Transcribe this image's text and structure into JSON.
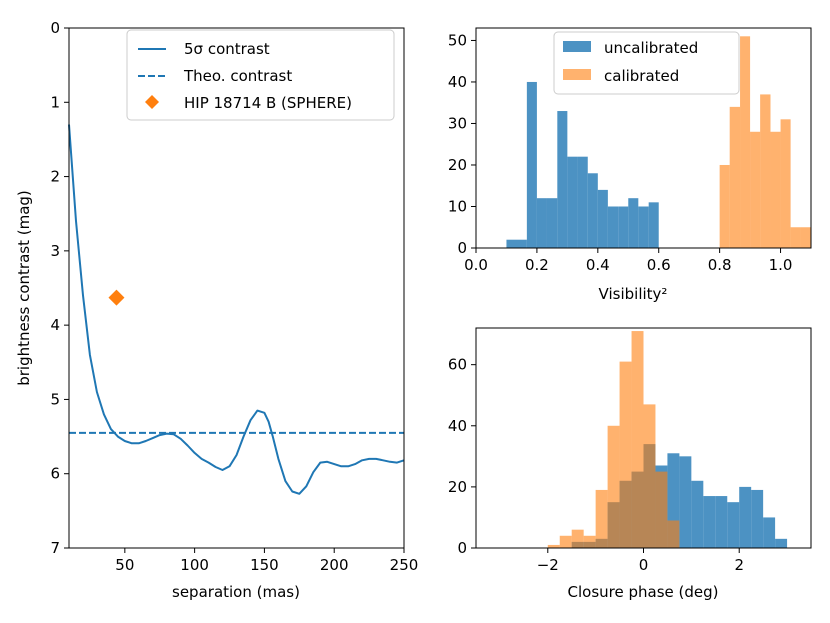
{
  "chart_data": [
    {
      "id": "contrast",
      "type": "line",
      "xlabel": "separation (mas)",
      "ylabel": "brightness contrast (mag)",
      "xlim": [
        10,
        250
      ],
      "ylim": [
        7,
        0
      ],
      "xticks": [
        50,
        100,
        150,
        200,
        250
      ],
      "yticks": [
        0,
        1,
        2,
        3,
        4,
        5,
        6,
        7
      ],
      "colors": {
        "line": "#1f77b4",
        "marker": "#ff7f0e"
      },
      "legend_position": "top-right",
      "legend": [
        "5σ contrast",
        "Theo. contrast",
        "HIP 18714 B (SPHERE)"
      ],
      "series": [
        {
          "name": "5σ contrast",
          "style": "solid",
          "x": [
            10,
            15,
            20,
            25,
            30,
            35,
            40,
            45,
            50,
            55,
            60,
            65,
            70,
            75,
            80,
            85,
            90,
            95,
            100,
            105,
            110,
            115,
            120,
            125,
            130,
            135,
            140,
            145,
            150,
            153,
            156,
            160,
            165,
            170,
            175,
            180,
            185,
            190,
            195,
            200,
            205,
            210,
            215,
            220,
            225,
            230,
            235,
            240,
            245,
            250
          ],
          "y": [
            1.3,
            2.6,
            3.6,
            4.4,
            4.9,
            5.2,
            5.4,
            5.5,
            5.56,
            5.59,
            5.59,
            5.56,
            5.52,
            5.48,
            5.46,
            5.47,
            5.53,
            5.62,
            5.72,
            5.8,
            5.85,
            5.91,
            5.95,
            5.9,
            5.75,
            5.5,
            5.28,
            5.15,
            5.18,
            5.3,
            5.5,
            5.8,
            6.1,
            6.24,
            6.27,
            6.17,
            5.98,
            5.85,
            5.84,
            5.87,
            5.9,
            5.9,
            5.87,
            5.82,
            5.8,
            5.8,
            5.82,
            5.84,
            5.85,
            5.82
          ]
        },
        {
          "name": "Theo. contrast",
          "style": "dashed",
          "y_constant": 5.45
        },
        {
          "name": "HIP 18714 B (SPHERE)",
          "style": "marker-diamond",
          "x": [
            44
          ],
          "y": [
            3.63
          ]
        }
      ]
    },
    {
      "id": "visibility",
      "type": "histogram",
      "xlabel": "Visibility²",
      "ylabel": "",
      "xlim": [
        0,
        1.1
      ],
      "ylim": [
        0,
        53
      ],
      "xticks": [
        "0.0",
        "0.2",
        "0.4",
        "0.6",
        "0.8",
        "1.0"
      ],
      "yticks": [
        0,
        10,
        20,
        30,
        40,
        50
      ],
      "legend_position": "top-center",
      "series": [
        {
          "name": "uncalibrated",
          "color": "#1f77b4",
          "bins": [
            0.1,
            0.133,
            0.167,
            0.2,
            0.233,
            0.267,
            0.3,
            0.333,
            0.367,
            0.4,
            0.433,
            0.467,
            0.5,
            0.533,
            0.567,
            0.6
          ],
          "counts": [
            2,
            2,
            40,
            12,
            12,
            33,
            22,
            22,
            18,
            14,
            10,
            10,
            12,
            10,
            11
          ]
        },
        {
          "name": "calibrated",
          "color": "#ff7f0e",
          "bins": [
            0.8,
            0.833,
            0.867,
            0.9,
            0.933,
            0.967,
            1.0,
            1.033,
            1.067,
            1.1
          ],
          "counts": [
            20,
            34,
            51,
            28,
            37,
            28,
            31,
            5,
            5
          ]
        }
      ]
    },
    {
      "id": "closure",
      "type": "histogram",
      "xlabel": "Closure phase (deg)",
      "ylabel": "",
      "xlim": [
        -3.5,
        3.5
      ],
      "ylim": [
        0,
        72
      ],
      "xticks": [
        "−2",
        "0",
        "2"
      ],
      "yticks": [
        0,
        20,
        40,
        60
      ],
      "series": [
        {
          "name": "uncalibrated",
          "color": "#1f77b4",
          "bins": [
            -1.5,
            -1.25,
            -1.0,
            -0.75,
            -0.5,
            -0.25,
            0.0,
            0.25,
            0.5,
            0.75,
            1.0,
            1.25,
            1.5,
            1.75,
            2.0,
            2.25,
            2.5,
            2.75,
            3.0
          ],
          "counts": [
            2,
            2,
            3,
            15,
            22,
            25,
            34,
            27,
            31,
            30,
            22,
            17,
            17,
            15,
            20,
            19,
            10,
            3
          ]
        },
        {
          "name": "calibrated",
          "color": "#ff7f0e",
          "bins": [
            -2.0,
            -1.75,
            -1.5,
            -1.25,
            -1.0,
            -0.75,
            -0.5,
            -0.25,
            0.0,
            0.25,
            0.5,
            0.75
          ],
          "counts": [
            1,
            4,
            6,
            4,
            19,
            40,
            61,
            71,
            47,
            25,
            9
          ]
        }
      ]
    }
  ]
}
